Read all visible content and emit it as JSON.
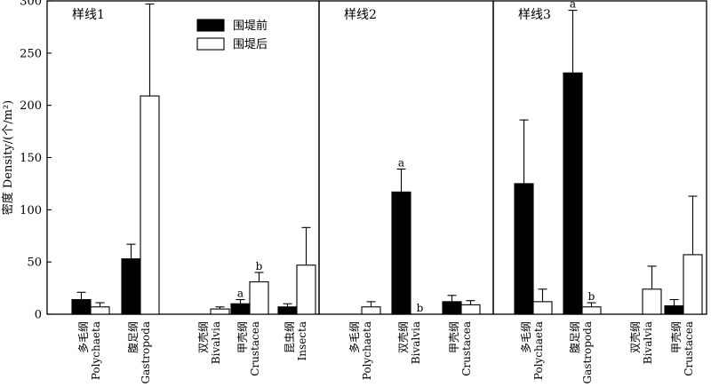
{
  "chart_data": {
    "type": "bar",
    "ylabel": "密度 Density/(个/m²)",
    "ylim": [
      0,
      300
    ],
    "yticks": [
      "0",
      "50",
      "100",
      "150",
      "200",
      "250",
      "300"
    ],
    "legend": {
      "position": "top-center",
      "series": [
        {
          "name": "围堤前",
          "color": "#000000"
        },
        {
          "name": "围堤后",
          "color": "#ffffff"
        }
      ]
    },
    "panels": [
      {
        "title": "样线1",
        "categories": [
          {
            "zh": "多毛纲",
            "en": "Polychaeta"
          },
          {
            "zh": "腹足纲",
            "en": "Gastropoda"
          },
          {
            "zh": "双壳纲",
            "en": "Bivalvia"
          },
          {
            "zh": "甲壳纲",
            "en": "Crustacea"
          },
          {
            "zh": "昆虫纲",
            "en": "Insecta"
          }
        ],
        "series": [
          {
            "name": "围堤前",
            "values": [
              14,
              53,
              0,
              10,
              7
            ],
            "errors": [
              21,
              67,
              0,
              14,
              10
            ],
            "letters": [
              "",
              "",
              "",
              "a",
              ""
            ]
          },
          {
            "name": "围堤后",
            "values": [
              7,
              209,
              5,
              31,
              47
            ],
            "errors": [
              11,
              297,
              7,
              40,
              83
            ],
            "letters": [
              "",
              "",
              "",
              "b",
              ""
            ]
          }
        ]
      },
      {
        "title": "样线2",
        "categories": [
          {
            "zh": "多毛纲",
            "en": "Polychaeta"
          },
          {
            "zh": "双壳纲",
            "en": "Bivalvia"
          },
          {
            "zh": "甲壳纲",
            "en": "Crustacea"
          }
        ],
        "series": [
          {
            "name": "围堤前",
            "values": [
              0,
              117,
              12
            ],
            "errors": [
              0,
              139,
              18
            ],
            "letters": [
              "",
              "a",
              ""
            ]
          },
          {
            "name": "围堤后",
            "values": [
              7,
              0,
              9
            ],
            "errors": [
              12,
              0,
              13
            ],
            "letters": [
              "",
              "b",
              ""
            ]
          }
        ]
      },
      {
        "title": "样线3",
        "categories": [
          {
            "zh": "多毛纲",
            "en": "Polychaeta"
          },
          {
            "zh": "腹足纲",
            "en": "Gastropoda"
          },
          {
            "zh": "双壳纲",
            "en": "Bivalvia"
          },
          {
            "zh": "甲壳纲",
            "en": "Crustacea"
          }
        ],
        "series": [
          {
            "name": "围堤前",
            "values": [
              125,
              231,
              0,
              8
            ],
            "errors": [
              186,
              291,
              0,
              14
            ],
            "letters": [
              "",
              "a",
              "",
              ""
            ]
          },
          {
            "name": "围堤后",
            "values": [
              12,
              7,
              24,
              57
            ],
            "errors": [
              24,
              11,
              46,
              113
            ],
            "letters": [
              "",
              "b",
              "",
              ""
            ]
          }
        ]
      }
    ]
  }
}
